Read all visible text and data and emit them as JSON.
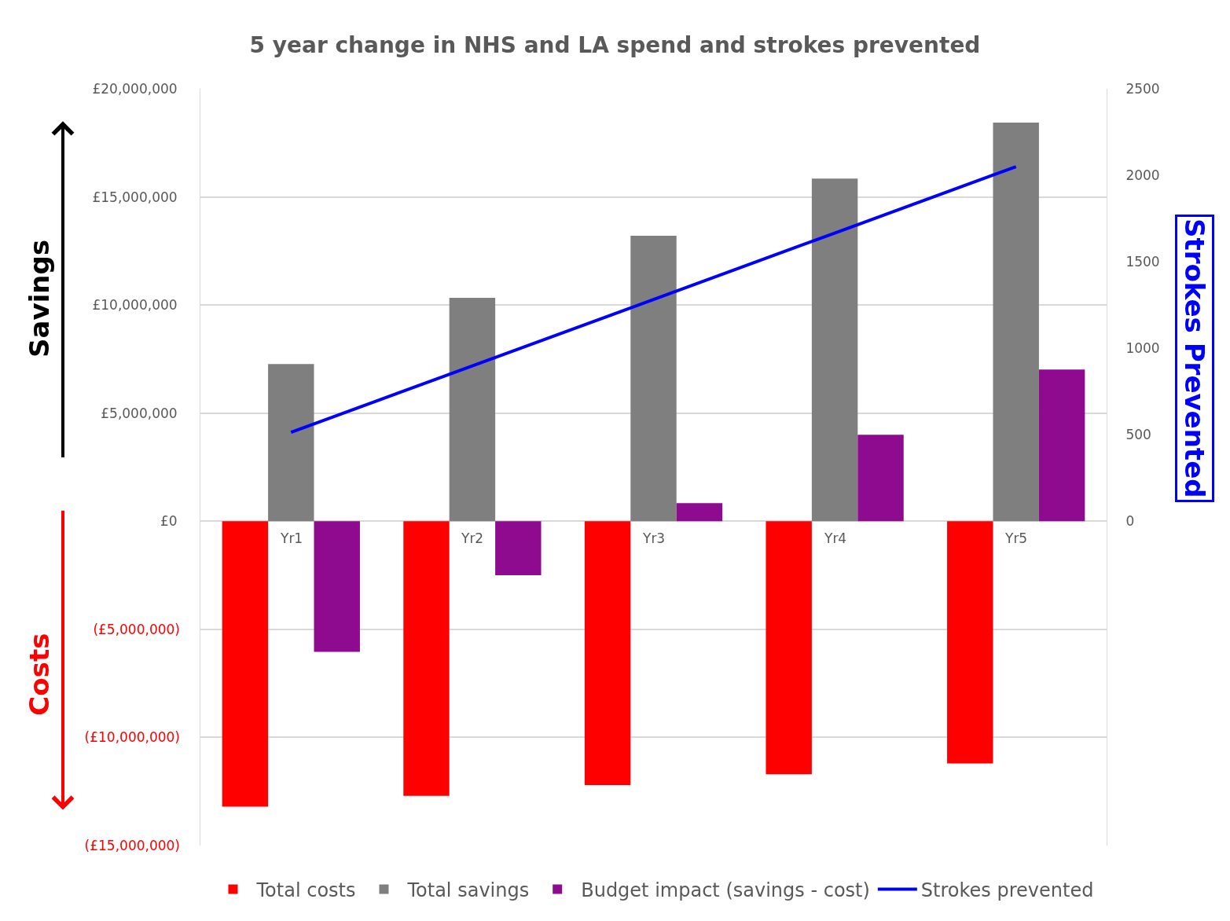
{
  "chart_data": {
    "type": "bar",
    "title": "5 year change in NHS and LA spend and strokes prevented",
    "categories": [
      "Yr1",
      "Yr2",
      "Yr3",
      "Yr4",
      "Yr5"
    ],
    "series": [
      {
        "name": "Total costs",
        "color": "#ff0000",
        "values": [
          -13200000,
          -12700000,
          -12200000,
          -11700000,
          -11200000
        ]
      },
      {
        "name": "Total savings",
        "color": "#7f7f7f",
        "values": [
          7270000,
          10330000,
          13200000,
          15850000,
          18440000
        ]
      },
      {
        "name": "Budget impact (savings - cost)",
        "color": "#8e0a8e",
        "values": [
          -6040000,
          -2500000,
          840000,
          4000000,
          7020000
        ]
      },
      {
        "name": "Strokes prevented",
        "color": "#0000ff",
        "type": "line",
        "axis": "y2",
        "values": [
          514,
          898,
          1282,
          1666,
          2050
        ]
      }
    ],
    "ylim": [
      -15000000,
      20000000
    ],
    "yticks": [
      {
        "value": -15000000,
        "label": "(£15,000,000)"
      },
      {
        "value": -10000000,
        "label": "(£10,000,000)"
      },
      {
        "value": -5000000,
        "label": "(£5,000,000)"
      },
      {
        "value": 0,
        "label": "£0"
      },
      {
        "value": 5000000,
        "label": "£5,000,000"
      },
      {
        "value": 10000000,
        "label": "£10,000,000"
      },
      {
        "value": 15000000,
        "label": "£15,000,000"
      },
      {
        "value": 20000000,
        "label": "£20,000,000"
      }
    ],
    "y2lim": [
      -1875,
      2500
    ],
    "y2ticks": [
      0,
      500,
      1000,
      1500,
      2000,
      2500
    ],
    "y2label": "Strokes Prevented",
    "annotations": [
      "Savings",
      "Costs"
    ],
    "grid": "y",
    "legend": "bottom",
    "marker": "none"
  }
}
